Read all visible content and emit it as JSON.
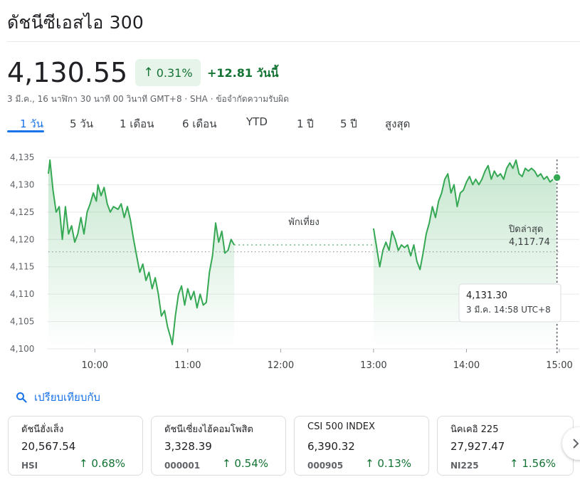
{
  "header": {
    "title": "ดัชนีซีเอสไอ 300"
  },
  "quote": {
    "price": "4,130.55",
    "change_percent": "0.31%",
    "change_abs": "+12.81 วันนี้",
    "meta": "3 มี.ค., 16 นาฬิกา 30 นาที 00 วินาที GMT+8 · SHA · ข้อจำกัดความรับผิด"
  },
  "tabs": [
    {
      "label": "1 วัน",
      "active": true
    },
    {
      "label": "5 วัน"
    },
    {
      "label": "1 เดือน"
    },
    {
      "label": "6 เดือน"
    },
    {
      "label": "YTD"
    },
    {
      "label": "1 ปี"
    },
    {
      "label": "5 ปี"
    },
    {
      "label": "สูงสุด"
    }
  ],
  "chart_data": {
    "type": "line",
    "xlim": [
      "09:30",
      "15:00"
    ],
    "ylim": [
      4100,
      4135
    ],
    "y_ticks": [
      "4,135",
      "4,130",
      "4,125",
      "4,120",
      "4,115",
      "4,110",
      "4,105",
      "4,100"
    ],
    "y_tick_values": [
      4135,
      4130,
      4125,
      4120,
      4115,
      4110,
      4105,
      4100
    ],
    "x_ticks": [
      "10:00",
      "11:00",
      "12:00",
      "13:00",
      "14:00",
      "15:00"
    ],
    "x_tick_values": [
      "10:00",
      "11:00",
      "12:00",
      "13:00",
      "14:00",
      "15:00"
    ],
    "grid": true,
    "line_color": "#34a853",
    "lunch_label": "พักเที่ยง",
    "lunch_break": [
      "11:30",
      "13:00"
    ],
    "previous_close": {
      "label": "ปิดล่าสุด",
      "value": 4117.74,
      "value_text": "4,117.74"
    },
    "tooltip": {
      "value": "4,131.30",
      "time": "3 มี.ค. 14:58 UTC+8",
      "at": "14:58",
      "y": 4131.3
    },
    "series": [
      {
        "values": [
          [
            "09:30",
            4132.0
          ],
          [
            "09:31",
            4134.5
          ],
          [
            "09:33",
            4129.0
          ],
          [
            "09:35",
            4125.0
          ],
          [
            "09:37",
            4126.0
          ],
          [
            "09:39",
            4120.0
          ],
          [
            "09:41",
            4126.0
          ],
          [
            "09:43",
            4121.0
          ],
          [
            "09:45",
            4122.5
          ],
          [
            "09:47",
            4119.5
          ],
          [
            "09:49",
            4121.0
          ],
          [
            "09:51",
            4124.0
          ],
          [
            "09:53",
            4121.0
          ],
          [
            "09:55",
            4125.0
          ],
          [
            "09:57",
            4126.5
          ],
          [
            "09:59",
            4128.5
          ],
          [
            "10:01",
            4127.0
          ],
          [
            "10:02",
            4130.0
          ],
          [
            "10:04",
            4128.0
          ],
          [
            "10:06",
            4129.5
          ],
          [
            "10:08",
            4126.5
          ],
          [
            "10:10",
            4125.0
          ],
          [
            "10:12",
            4126.0
          ],
          [
            "10:15",
            4125.5
          ],
          [
            "10:17",
            4126.5
          ],
          [
            "10:19",
            4124.0
          ],
          [
            "10:21",
            4126.0
          ],
          [
            "10:23",
            4123.5
          ],
          [
            "10:25",
            4120.0
          ],
          [
            "10:27",
            4117.0
          ],
          [
            "10:29",
            4114.0
          ],
          [
            "10:31",
            4115.5
          ],
          [
            "10:33",
            4112.5
          ],
          [
            "10:35",
            4114.0
          ],
          [
            "10:37",
            4111.0
          ],
          [
            "10:39",
            4113.0
          ],
          [
            "10:41",
            4110.0
          ],
          [
            "10:43",
            4106.0
          ],
          [
            "10:45",
            4107.0
          ],
          [
            "10:47",
            4104.0
          ],
          [
            "10:49",
            4102.0
          ],
          [
            "10:50",
            4100.8
          ],
          [
            "10:52",
            4106.0
          ],
          [
            "10:54",
            4110.0
          ],
          [
            "10:56",
            4111.5
          ],
          [
            "10:58",
            4108.0
          ],
          [
            "11:00",
            4111.0
          ],
          [
            "11:02",
            4109.0
          ],
          [
            "11:04",
            4110.5
          ],
          [
            "11:06",
            4107.5
          ],
          [
            "11:08",
            4110.0
          ],
          [
            "11:10",
            4108.0
          ],
          [
            "11:12",
            4108.5
          ],
          [
            "11:14",
            4114.0
          ],
          [
            "11:16",
            4117.0
          ],
          [
            "11:18",
            4123.0
          ],
          [
            "11:20",
            4119.5
          ],
          [
            "11:22",
            4121.5
          ],
          [
            "11:24",
            4117.5
          ],
          [
            "11:26",
            4118.0
          ],
          [
            "11:28",
            4120.0
          ],
          [
            "11:30",
            4119.0
          ],
          [
            "13:00",
            4122.0
          ],
          [
            "13:02",
            4118.5
          ],
          [
            "13:04",
            4115.0
          ],
          [
            "13:06",
            4118.0
          ],
          [
            "13:08",
            4119.5
          ],
          [
            "13:10",
            4118.0
          ],
          [
            "13:12",
            4121.5
          ],
          [
            "13:14",
            4120.0
          ],
          [
            "13:16",
            4118.0
          ],
          [
            "13:18",
            4119.0
          ],
          [
            "13:20",
            4118.5
          ],
          [
            "13:22",
            4119.0
          ],
          [
            "13:24",
            4117.0
          ],
          [
            "13:26",
            4119.0
          ],
          [
            "13:28",
            4116.0
          ],
          [
            "13:30",
            4114.5
          ],
          [
            "13:32",
            4117.5
          ],
          [
            "13:34",
            4121.0
          ],
          [
            "13:36",
            4123.0
          ],
          [
            "13:38",
            4126.0
          ],
          [
            "13:40",
            4124.0
          ],
          [
            "13:42",
            4127.0
          ],
          [
            "13:44",
            4128.5
          ],
          [
            "13:46",
            4131.0
          ],
          [
            "13:48",
            4132.0
          ],
          [
            "13:50",
            4128.5
          ],
          [
            "13:52",
            4130.0
          ],
          [
            "13:54",
            4126.0
          ],
          [
            "13:56",
            4128.5
          ],
          [
            "13:58",
            4129.0
          ],
          [
            "14:00",
            4130.5
          ],
          [
            "14:02",
            4131.5
          ],
          [
            "14:04",
            4130.0
          ],
          [
            "14:06",
            4131.0
          ],
          [
            "14:08",
            4130.0
          ],
          [
            "14:10",
            4131.0
          ],
          [
            "14:12",
            4132.5
          ],
          [
            "14:14",
            4133.5
          ],
          [
            "14:16",
            4131.0
          ],
          [
            "14:18",
            4132.5
          ],
          [
            "14:20",
            4131.5
          ],
          [
            "14:22",
            4132.0
          ],
          [
            "14:24",
            4131.0
          ],
          [
            "14:26",
            4133.0
          ],
          [
            "14:28",
            4134.0
          ],
          [
            "14:30",
            4133.0
          ],
          [
            "14:32",
            4134.5
          ],
          [
            "14:34",
            4132.0
          ],
          [
            "14:36",
            4131.5
          ],
          [
            "14:38",
            4133.0
          ],
          [
            "14:40",
            4132.5
          ],
          [
            "14:42",
            4133.0
          ],
          [
            "14:44",
            4132.5
          ],
          [
            "14:46",
            4131.5
          ],
          [
            "14:48",
            4132.0
          ],
          [
            "14:50",
            4131.0
          ],
          [
            "14:52",
            4131.5
          ],
          [
            "14:54",
            4130.5
          ],
          [
            "14:56",
            4131.0
          ],
          [
            "14:58",
            4131.3
          ]
        ]
      }
    ]
  },
  "compare": {
    "label": "เปรียบเทียบกับ"
  },
  "cards": [
    {
      "name": "ดัชนีฮั่งเส็ง",
      "price": "20,567.54",
      "symbol": "HSI",
      "change": "0.68%"
    },
    {
      "name": "ดัชนีเซี่ยงไฮ้คอมโพสิต",
      "price": "3,328.39",
      "symbol": "000001",
      "change": "0.54%"
    },
    {
      "name": "CSI 500 INDEX",
      "price": "6,390.32",
      "symbol": "000905",
      "change": "0.13%"
    },
    {
      "name": "นิคเคอิ 225",
      "price": "27,927.47",
      "symbol": "NI225",
      "change": "1.56%"
    }
  ],
  "colors": {
    "positive": "#137333",
    "positive_bg": "#e6f4ea",
    "accent": "#1a73e8",
    "line": "#34a853"
  }
}
